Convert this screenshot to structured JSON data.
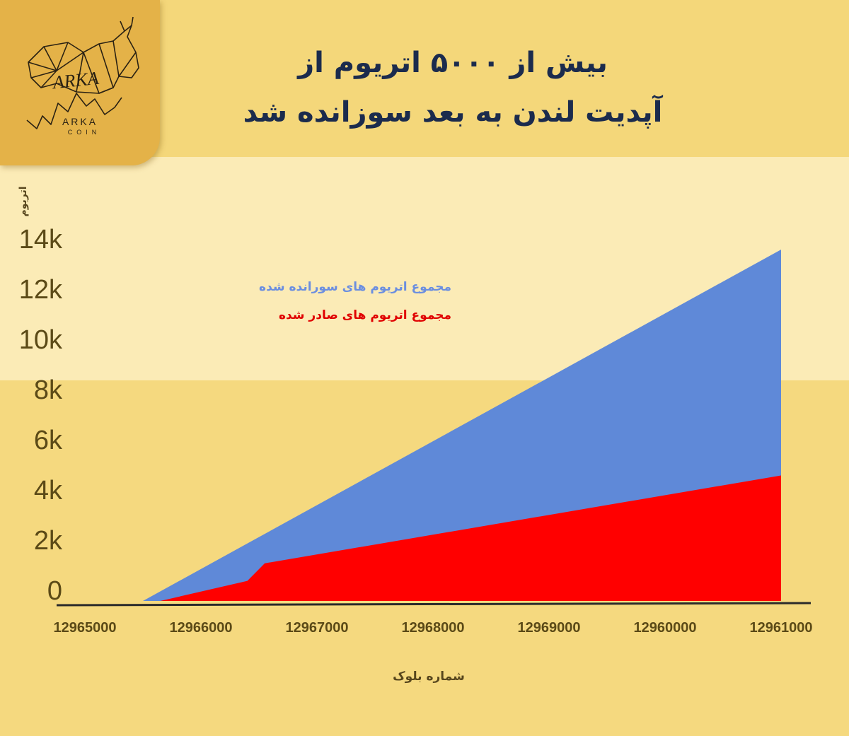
{
  "logo": {
    "brand": "ARKA",
    "sub": "COIN",
    "script": "ARKA"
  },
  "title": {
    "line1": "بیش از ۵۰۰۰ اتریوم از",
    "line2": "آپدیت لندن به بعد سوزانده شد"
  },
  "colors": {
    "burned": "#5f89d8",
    "issued": "#ff0000",
    "axis": "#2a2a2a",
    "title": "#1b2b4d"
  },
  "chart_data": {
    "type": "area",
    "xlabel": "شماره بلوک",
    "ylabel": "اتریوم",
    "x_tick_labels": [
      "12965000",
      "12966000",
      "12967000",
      "12968000",
      "12969000",
      "12960000",
      "12961000"
    ],
    "y_tick_labels": [
      "0",
      "2k",
      "4k",
      "6k",
      "8k",
      "10k",
      "12k",
      "14k"
    ],
    "ylim": [
      0,
      14000
    ],
    "legend_position": "top-left",
    "series": [
      {
        "name": "مجموع اتریوم های سورانده شده",
        "color": "#5f89d8",
        "points": [
          [
            0.5,
            0
          ],
          [
            6.0,
            14000
          ]
        ]
      },
      {
        "name": "مجموع اتریوم های صادر شده",
        "color": "#ff0000",
        "points": [
          [
            0.65,
            0
          ],
          [
            1.4,
            800
          ],
          [
            1.55,
            1500
          ],
          [
            6.0,
            5000
          ]
        ]
      }
    ]
  }
}
